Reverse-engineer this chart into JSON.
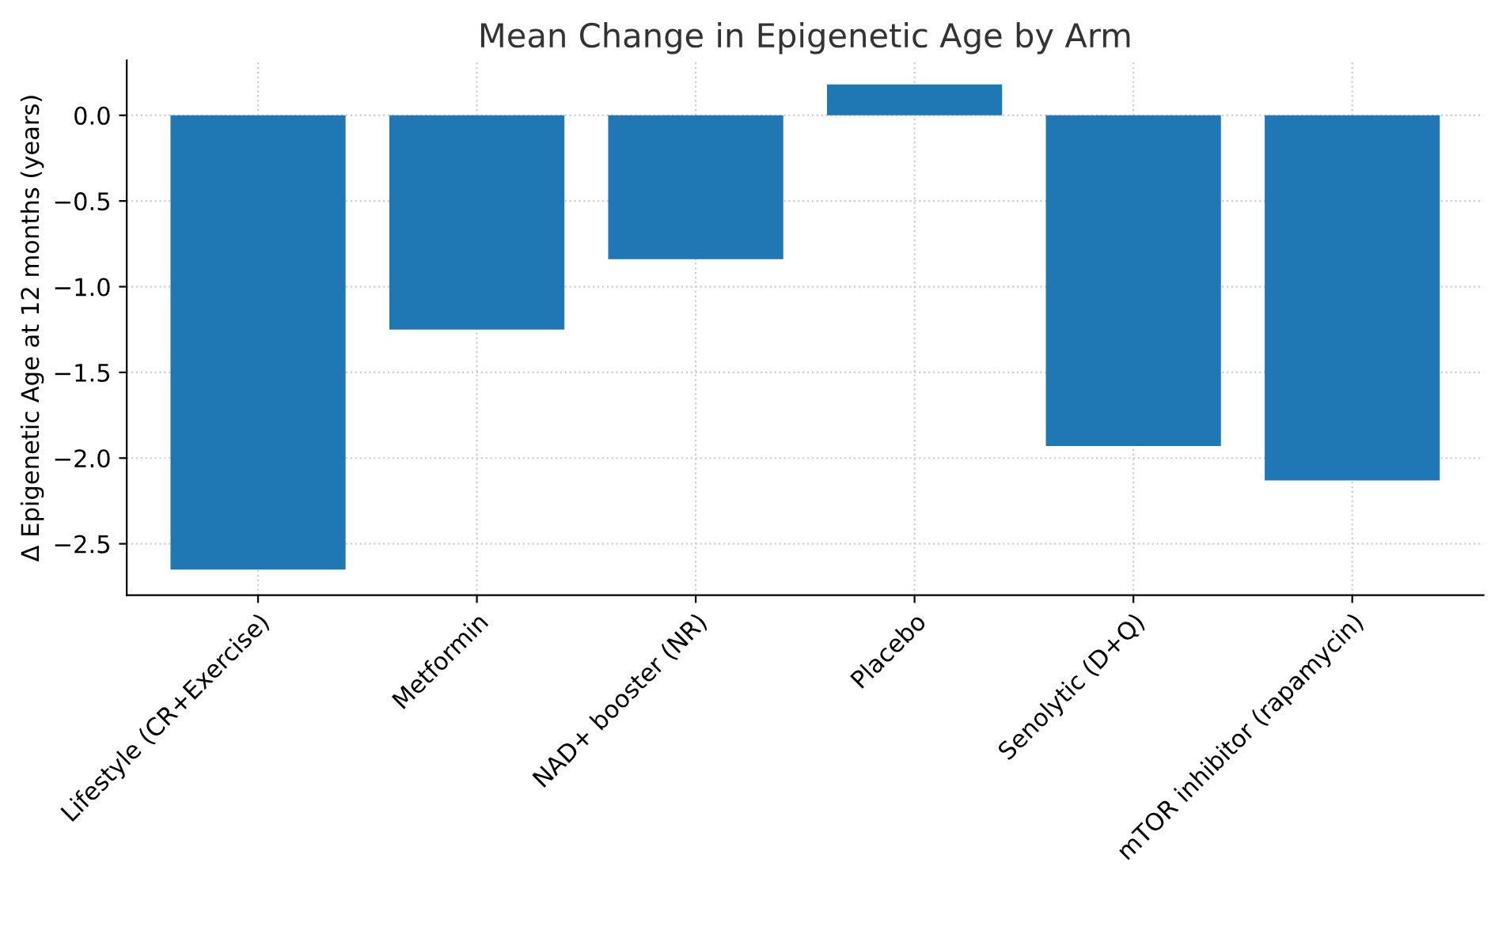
{
  "chart_data": {
    "type": "bar",
    "title": "Mean Change in Epigenetic Age by Arm",
    "ylabel": "Δ Epigenetic Age at 12 months (years)",
    "categories": [
      "Lifestyle (CR+Exercise)",
      "Metformin",
      "NAD+ booster (NR)",
      "Placebo",
      "Senolytic (D+Q)",
      "mTOR inhibitor (rapamycin)"
    ],
    "values": [
      -2.65,
      -1.25,
      -0.84,
      0.18,
      -1.93,
      -2.13
    ],
    "color": "#1f77b4",
    "ylim": [
      -2.8,
      0.32
    ],
    "yticks": [
      {
        "value": -2.5,
        "label": "−2.5"
      },
      {
        "value": -2.0,
        "label": "−2.0"
      },
      {
        "value": -1.5,
        "label": "−1.5"
      },
      {
        "value": -1.0,
        "label": "−1.0"
      },
      {
        "value": -0.5,
        "label": "−0.5"
      },
      {
        "value": 0.0,
        "label": "0.0"
      }
    ],
    "grid": true
  }
}
